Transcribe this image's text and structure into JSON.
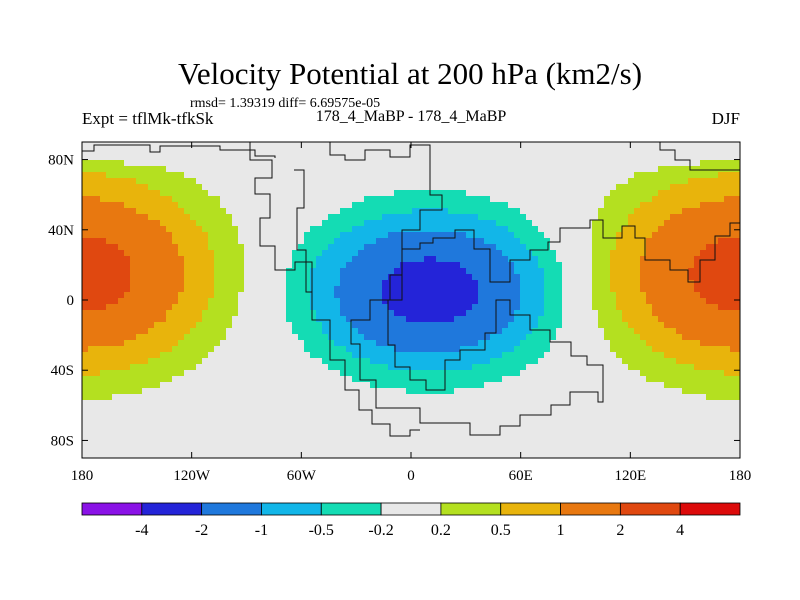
{
  "chart_data": {
    "type": "filled-contour-map",
    "title": "Velocity Potential at 200 hPa (km2/s)",
    "stats": "rmsd= 1.39319 diff= 6.69575e-05",
    "left_label": "Expt = tflMk-tfkSk",
    "center_label": "178_4_MaBP - 178_4_MaBP",
    "right_label": "DJF",
    "lon_range": [
      -180,
      180
    ],
    "lat_range": [
      -90,
      90
    ],
    "x_ticks": [
      {
        "lon": -180,
        "label": "180"
      },
      {
        "lon": -120,
        "label": "120W"
      },
      {
        "lon": -60,
        "label": "60W"
      },
      {
        "lon": 0,
        "label": "0"
      },
      {
        "lon": 60,
        "label": "60E"
      },
      {
        "lon": 120,
        "label": "120E"
      },
      {
        "lon": 180,
        "label": "180"
      }
    ],
    "y_ticks": [
      {
        "lat": 80,
        "label": "80N"
      },
      {
        "lat": 40,
        "label": "40N"
      },
      {
        "lat": 0,
        "label": "0"
      },
      {
        "lat": -40,
        "label": "40S"
      },
      {
        "lat": -80,
        "label": "80S"
      }
    ],
    "colorbar": {
      "colors": [
        "#8a12e6",
        "#2424d8",
        "#1f78dc",
        "#12b6e8",
        "#14dcb4",
        "#e8e8e8",
        "#b4e020",
        "#e8b40c",
        "#e87810",
        "#e04810",
        "#dc0a0a"
      ],
      "levels": [
        "-4",
        "-2",
        "-1",
        "-0.5",
        "-0.2",
        "0.2",
        "0.5",
        "1",
        "2",
        "4"
      ]
    },
    "fields": [
      {
        "name": "negative-center",
        "lon": 10,
        "lat": 5,
        "amplitude": -2.6,
        "sigma_lon": 52,
        "sigma_lat": 36
      },
      {
        "name": "positive-center-dateline",
        "lon": 180,
        "lat": 15,
        "amplitude": 2.5,
        "sigma_lon": 58,
        "sigma_lat": 45
      },
      {
        "name": "polar-cap-band",
        "type": "latitude-fade",
        "start_lat": 72,
        "end_lat": 90
      }
    ]
  }
}
